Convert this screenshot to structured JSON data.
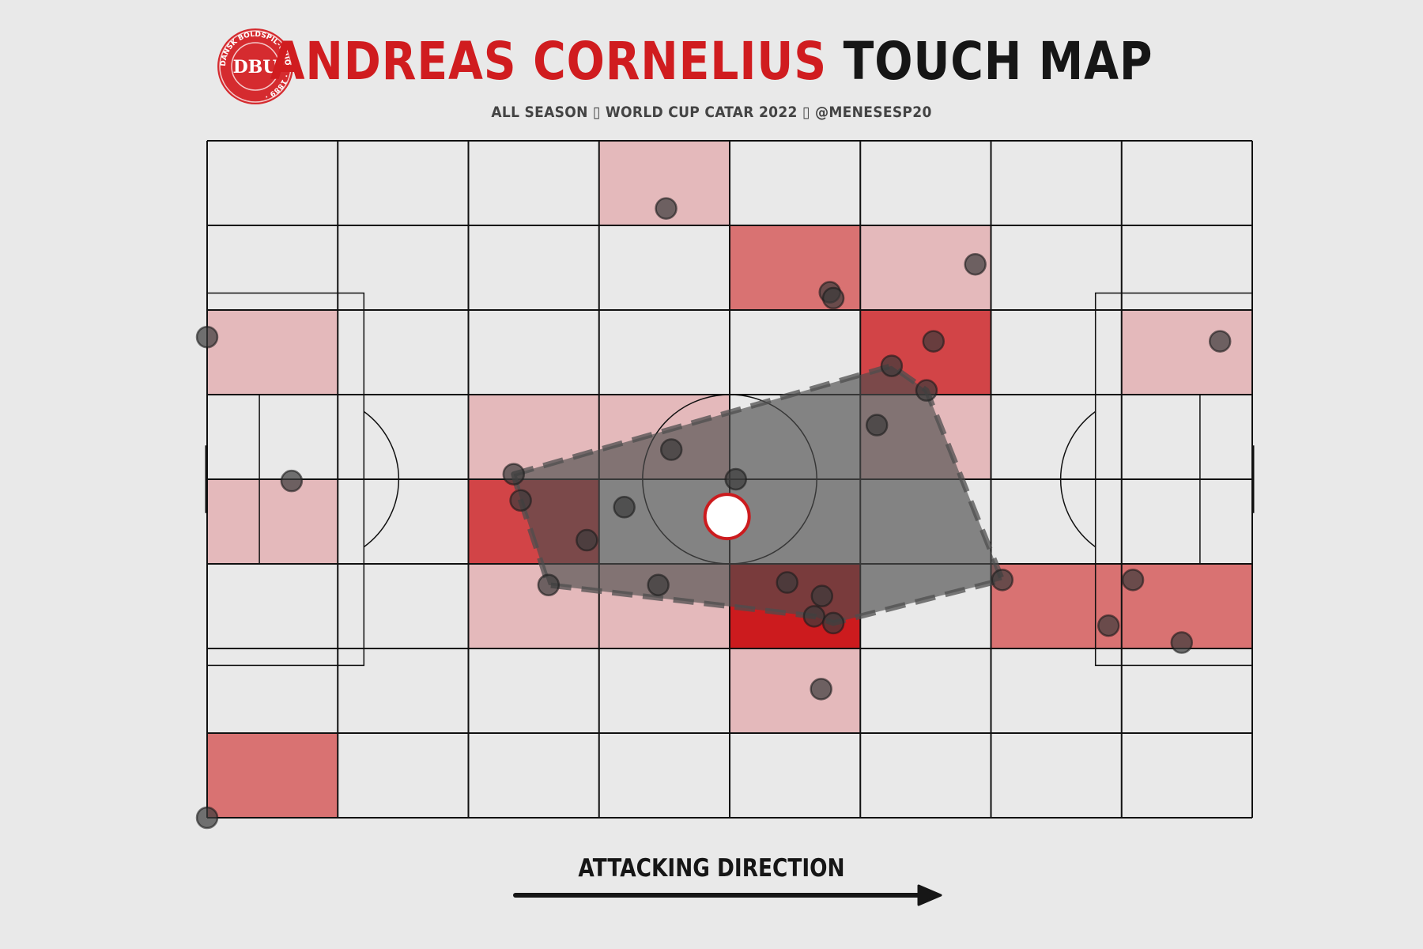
{
  "header": {
    "player_name": "ANDREAS CORNELIUS",
    "title_rest": "TOUCH MAP",
    "subtitle": "ALL SEASON ▯ WORLD CUP CATAR 2022 ▯ @MENESESP20"
  },
  "logo": {
    "text": "DBU",
    "ring_text": "DANSK BOLDSPIL-UNION · 1889 ·",
    "color": "#d52b2f"
  },
  "footer": {
    "direction_label": "ATTACKING DIRECTION"
  },
  "colors": {
    "background": "#e9e9e9",
    "accent": "#d01c1f",
    "bin_levels": [
      "#e9e9e9",
      "#e4b9bb",
      "#d97272",
      "#d24447",
      "#cc1b1e"
    ],
    "points": "#3a3a3a",
    "hull": "#4d4d4d",
    "mean_marker_fill": "#ffffff",
    "mean_marker_stroke": "#cc1b1e"
  },
  "chart_data": {
    "type": "heatmap",
    "pitch": {
      "length": 120,
      "width": 80,
      "grid_cols": 8,
      "grid_rows": 8
    },
    "bins": [
      [
        0,
        0,
        0,
        1,
        0,
        0,
        0,
        0
      ],
      [
        0,
        0,
        0,
        0,
        2,
        1,
        0,
        0
      ],
      [
        1,
        0,
        0,
        0,
        0,
        3,
        0,
        1
      ],
      [
        0,
        0,
        1,
        1,
        0,
        1,
        0,
        0
      ],
      [
        1,
        0,
        3,
        0,
        0,
        0,
        0,
        0
      ],
      [
        0,
        0,
        1,
        1,
        4,
        0,
        2,
        2
      ],
      [
        0,
        0,
        0,
        0,
        1,
        0,
        0,
        0
      ],
      [
        2,
        0,
        0,
        0,
        0,
        0,
        0,
        0
      ]
    ],
    "touches": [
      {
        "x": 52.7,
        "y": 8.0
      },
      {
        "x": 71.5,
        "y": 17.9
      },
      {
        "x": 71.9,
        "y": 18.6
      },
      {
        "x": 88.2,
        "y": 14.6
      },
      {
        "x": 0.0,
        "y": 23.2
      },
      {
        "x": 83.4,
        "y": 23.7
      },
      {
        "x": 78.6,
        "y": 26.6
      },
      {
        "x": 82.6,
        "y": 29.5
      },
      {
        "x": 116.3,
        "y": 23.7
      },
      {
        "x": 76.9,
        "y": 33.6
      },
      {
        "x": 53.3,
        "y": 36.5
      },
      {
        "x": 35.2,
        "y": 39.4
      },
      {
        "x": 60.7,
        "y": 40.0
      },
      {
        "x": 9.7,
        "y": 40.2
      },
      {
        "x": 36.0,
        "y": 42.5
      },
      {
        "x": 47.9,
        "y": 43.3
      },
      {
        "x": 43.6,
        "y": 47.2
      },
      {
        "x": 39.2,
        "y": 52.5
      },
      {
        "x": 51.8,
        "y": 52.5
      },
      {
        "x": 66.6,
        "y": 52.2
      },
      {
        "x": 70.6,
        "y": 53.8
      },
      {
        "x": 69.7,
        "y": 56.2
      },
      {
        "x": 71.9,
        "y": 57.0
      },
      {
        "x": 91.3,
        "y": 51.9
      },
      {
        "x": 106.3,
        "y": 51.9
      },
      {
        "x": 103.5,
        "y": 57.3
      },
      {
        "x": 111.9,
        "y": 59.3
      },
      {
        "x": 70.5,
        "y": 64.8
      },
      {
        "x": 0.0,
        "y": 80.0
      }
    ],
    "hull": [
      {
        "x": 35.2,
        "y": 39.4
      },
      {
        "x": 78.6,
        "y": 26.6
      },
      {
        "x": 82.6,
        "y": 29.5
      },
      {
        "x": 91.3,
        "y": 51.9
      },
      {
        "x": 71.9,
        "y": 57.0
      },
      {
        "x": 69.7,
        "y": 56.2
      },
      {
        "x": 39.2,
        "y": 52.5
      },
      {
        "x": 36.0,
        "y": 42.5
      }
    ],
    "mean_position": {
      "x": 59.7,
      "y": 44.4
    }
  }
}
